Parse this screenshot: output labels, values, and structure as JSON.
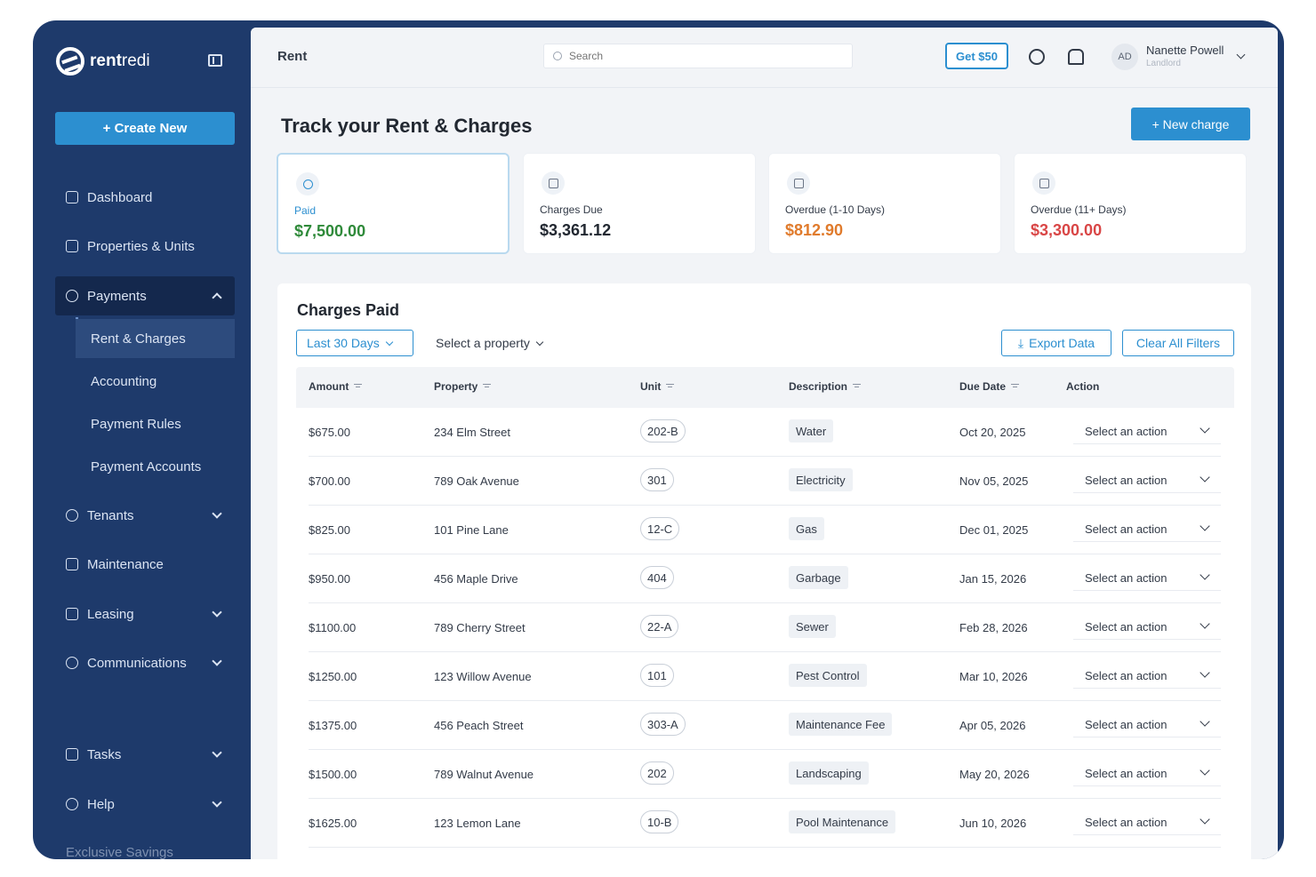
{
  "sidebar": {
    "logo_bold": "rent",
    "logo_light": "redi",
    "create_label": "+  Create New",
    "items": [
      {
        "label": "Dashboard"
      },
      {
        "label": "Properties & Units"
      },
      {
        "label": "Payments"
      },
      {
        "label": "Tenants"
      },
      {
        "label": "Maintenance"
      },
      {
        "label": "Leasing"
      },
      {
        "label": "Communications"
      },
      {
        "label": "Tasks"
      },
      {
        "label": "Help"
      }
    ],
    "payments_sub": [
      {
        "label": "Rent & Charges"
      },
      {
        "label": "Accounting"
      },
      {
        "label": "Payment Rules"
      },
      {
        "label": "Payment Accounts"
      }
    ],
    "cutoff_item": "Exclusive Savings"
  },
  "topbar": {
    "breadcrumb": "Rent",
    "search_placeholder": "Search",
    "promo_label": "Get $50",
    "user_initials": "AD",
    "user_name": "Nanette Powell",
    "user_role": "Landlord"
  },
  "page": {
    "title": "Track your Rent & Charges",
    "new_charge_label": "+  New charge"
  },
  "stats": [
    {
      "label": "Paid",
      "value": "$7,500.00",
      "color": "#2f8a3a"
    },
    {
      "label": "Charges Due",
      "value": "$3,361.12",
      "color": "#222831"
    },
    {
      "label": "Overdue (1-10 Days)",
      "value": "$812.90",
      "color": "#e07b2c"
    },
    {
      "label": "Overdue (11+ Days)",
      "value": "$3,300.00",
      "color": "#d94646"
    }
  ],
  "table": {
    "title": "Charges Paid",
    "date_filter": "Last 30 Days",
    "property_filter": "Select a property",
    "export_label": "Export Data",
    "clear_label": "Clear All Filters",
    "columns": [
      "Amount",
      "Property",
      "Unit",
      "Description",
      "Due Date",
      "Action"
    ],
    "rows": [
      {
        "amount": "$675.00",
        "property": "234 Elm Street",
        "unit": "202-B",
        "description": "Water",
        "due": "Oct 20, 2025",
        "action": "Select an action"
      },
      {
        "amount": "$700.00",
        "property": "789 Oak Avenue",
        "unit": "301",
        "description": "Electricity",
        "due": "Nov 05, 2025",
        "action": "Select an action"
      },
      {
        "amount": "$825.00",
        "property": "101 Pine Lane",
        "unit": "12-C",
        "description": "Gas",
        "due": "Dec 01, 2025",
        "action": "Select an action"
      },
      {
        "amount": "$950.00",
        "property": "456 Maple Drive",
        "unit": "404",
        "description": "Garbage",
        "due": "Jan 15, 2026",
        "action": "Select an action"
      },
      {
        "amount": "$1100.00",
        "property": "789 Cherry Street",
        "unit": "22-A",
        "description": "Sewer",
        "due": "Feb 28, 2026",
        "action": "Select an action"
      },
      {
        "amount": "$1250.00",
        "property": "123 Willow Avenue",
        "unit": "101",
        "description": "Pest Control",
        "due": "Mar 10, 2026",
        "action": "Select an action"
      },
      {
        "amount": "$1375.00",
        "property": "456 Peach Street",
        "unit": "303-A",
        "description": "Maintenance Fee",
        "due": "Apr 05, 2026",
        "action": "Select an action"
      },
      {
        "amount": "$1500.00",
        "property": "789 Walnut Avenue",
        "unit": "202",
        "description": "Landscaping",
        "due": "May 20, 2026",
        "action": "Select an action"
      },
      {
        "amount": "$1625.00",
        "property": "123 Lemon Lane",
        "unit": "10-B",
        "description": "Pool Maintenance",
        "due": "Jun 10, 2026",
        "action": "Select an action"
      }
    ]
  },
  "colors": {
    "accent": "#2c8fd0",
    "sidebar": "#1e3a6b"
  }
}
